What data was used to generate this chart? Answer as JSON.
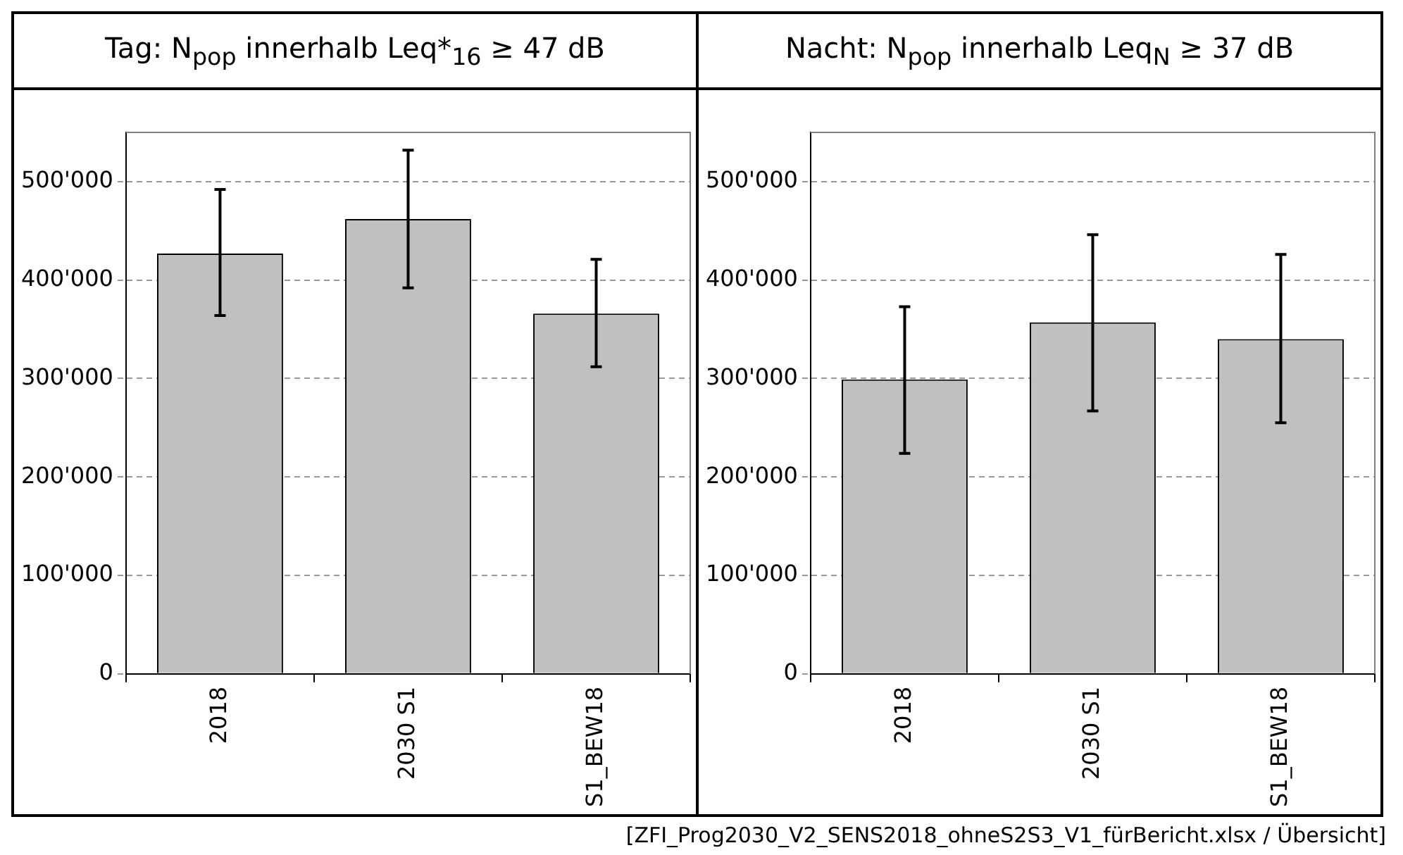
{
  "chart_data": [
    {
      "type": "bar",
      "title": "Tag: N$_{pop}$ innerhalb Leq*$_{16}$ ≥ 47 dB",
      "categories": [
        "2018",
        "2030 S1",
        "S1_BEW18"
      ],
      "values": [
        427000,
        462000,
        366000
      ],
      "errors": [
        [
          364000,
          492000
        ],
        [
          392000,
          532000
        ],
        [
          312000,
          421000
        ]
      ],
      "color": "#c0c0c0",
      "ylim": [
        0,
        550000
      ],
      "yticks": [
        {
          "value": 0,
          "label": "0"
        },
        {
          "value": 100000,
          "label": "100'000"
        },
        {
          "value": 200000,
          "label": "200'000"
        },
        {
          "value": 300000,
          "label": "300'000"
        },
        {
          "value": 400000,
          "label": "400'000"
        },
        {
          "value": 500000,
          "label": "500'000"
        }
      ],
      "grid": "y",
      "legend": false
    },
    {
      "type": "bar",
      "title": "Nacht: N$_{pop}$ innerhalb Leq$_{N}$ ≥ 37 dB",
      "categories": [
        "2018",
        "2030 S1",
        "S1_BEW18"
      ],
      "values": [
        299000,
        357000,
        340000
      ],
      "errors": [
        [
          224000,
          373000
        ],
        [
          267000,
          446000
        ],
        [
          255000,
          426000
        ]
      ],
      "color": "#c0c0c0",
      "ylim": [
        0,
        550000
      ],
      "yticks": [
        {
          "value": 0,
          "label": "0"
        },
        {
          "value": 100000,
          "label": "100'000"
        },
        {
          "value": 200000,
          "label": "200'000"
        },
        {
          "value": 300000,
          "label": "300'000"
        },
        {
          "value": 400000,
          "label": "400'000"
        },
        {
          "value": 500000,
          "label": "500'000"
        }
      ],
      "grid": "y",
      "legend": false,
      "annotations": [
        "[ZFI_Prog2030_V2_SENS2018_ohneS2S3_V1_fürBericht.xlsx / Übersicht]"
      ]
    }
  ]
}
